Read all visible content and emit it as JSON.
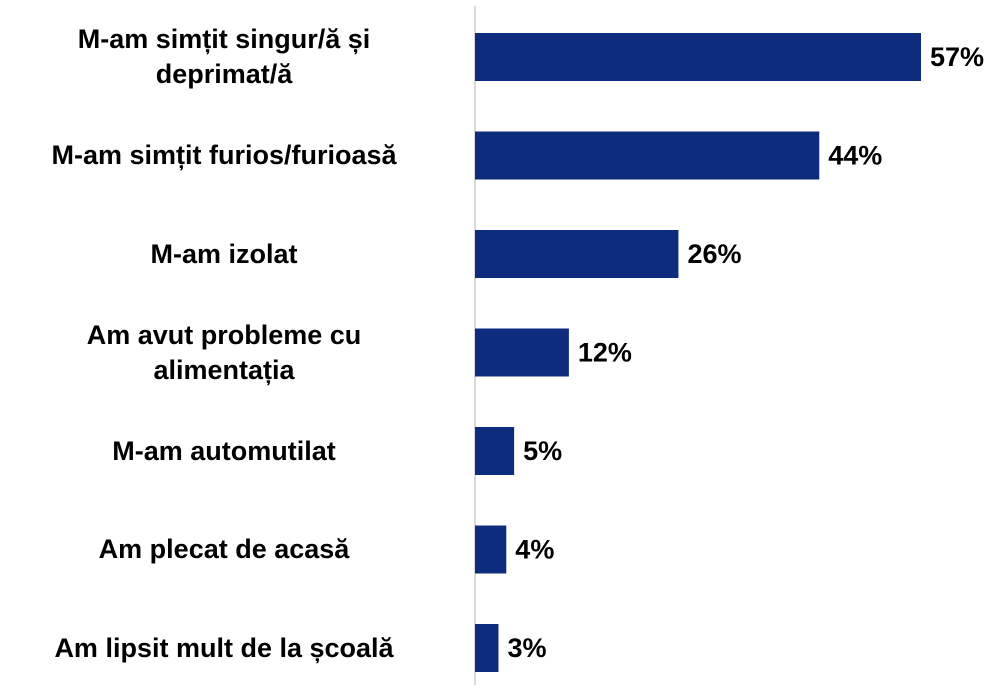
{
  "chart_data": {
    "type": "bar",
    "orientation": "horizontal",
    "categories": [
      "M-am simțit singur/ă și\ndeprimat/ă",
      "M-am simțit furios/furioasă",
      "M-am izolat",
      "Am avut probleme cu\nalimentația",
      "M-am automutilat",
      "Am plecat de acasă",
      "Am lipsit mult de la școală"
    ],
    "values": [
      57,
      44,
      26,
      12,
      5,
      4,
      3
    ],
    "value_labels": [
      "57%",
      "44%",
      "26%",
      "12%",
      "5%",
      "4%",
      "3%"
    ],
    "xlim": [
      0,
      57
    ],
    "grid": false,
    "legend": "none",
    "bar_color": "#0d2c7e",
    "axis_color": "#d9d9d9",
    "text_color": "#000000"
  }
}
